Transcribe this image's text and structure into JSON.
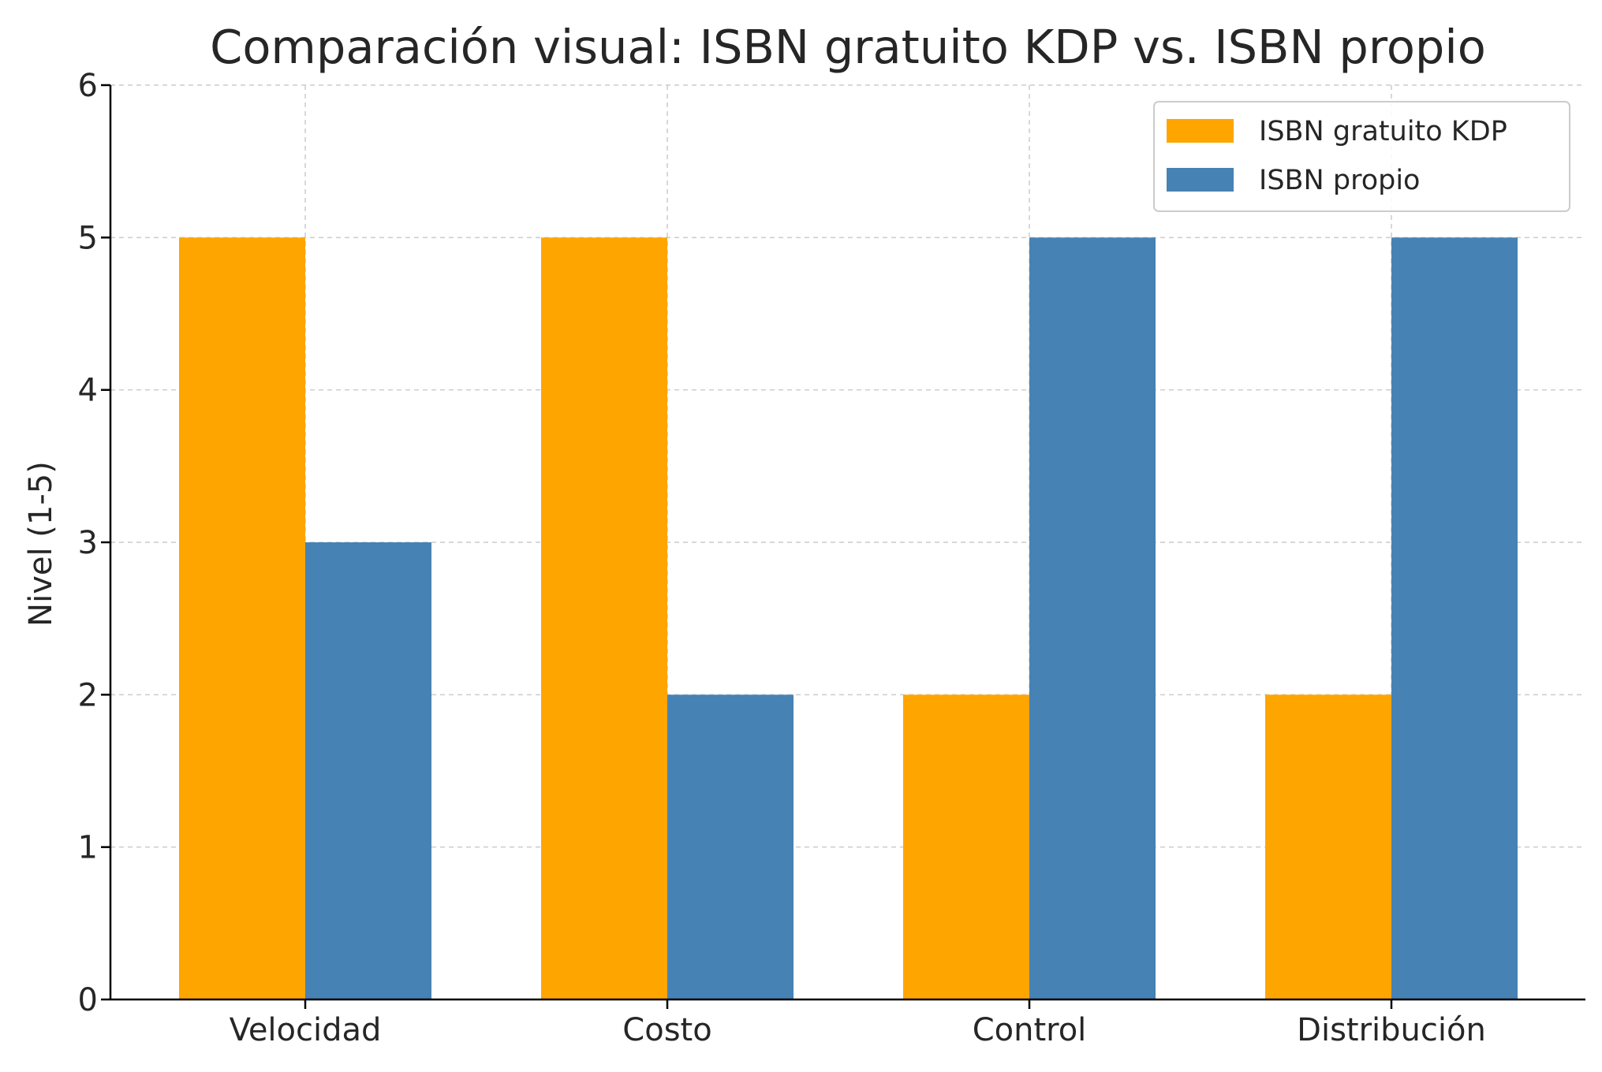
{
  "chart_data": {
    "type": "bar",
    "title": "Comparación visual: ISBN gratuito KDP vs. ISBN propio",
    "xlabel": "",
    "ylabel": "Nivel (1-5)",
    "categories": [
      "Velocidad",
      "Costo",
      "Control",
      "Distribución"
    ],
    "series": [
      {
        "name": "ISBN gratuito KDP",
        "values": [
          5,
          5,
          2,
          2
        ],
        "color": "#FFA500"
      },
      {
        "name": "ISBN propio",
        "values": [
          3,
          2,
          5,
          5
        ],
        "color": "#4682B4"
      }
    ],
    "ylim": [
      0,
      6
    ],
    "yticks": [
      "0",
      "1",
      "2",
      "3",
      "4",
      "5",
      "6"
    ],
    "grid": true,
    "legend_position": "top-right"
  }
}
